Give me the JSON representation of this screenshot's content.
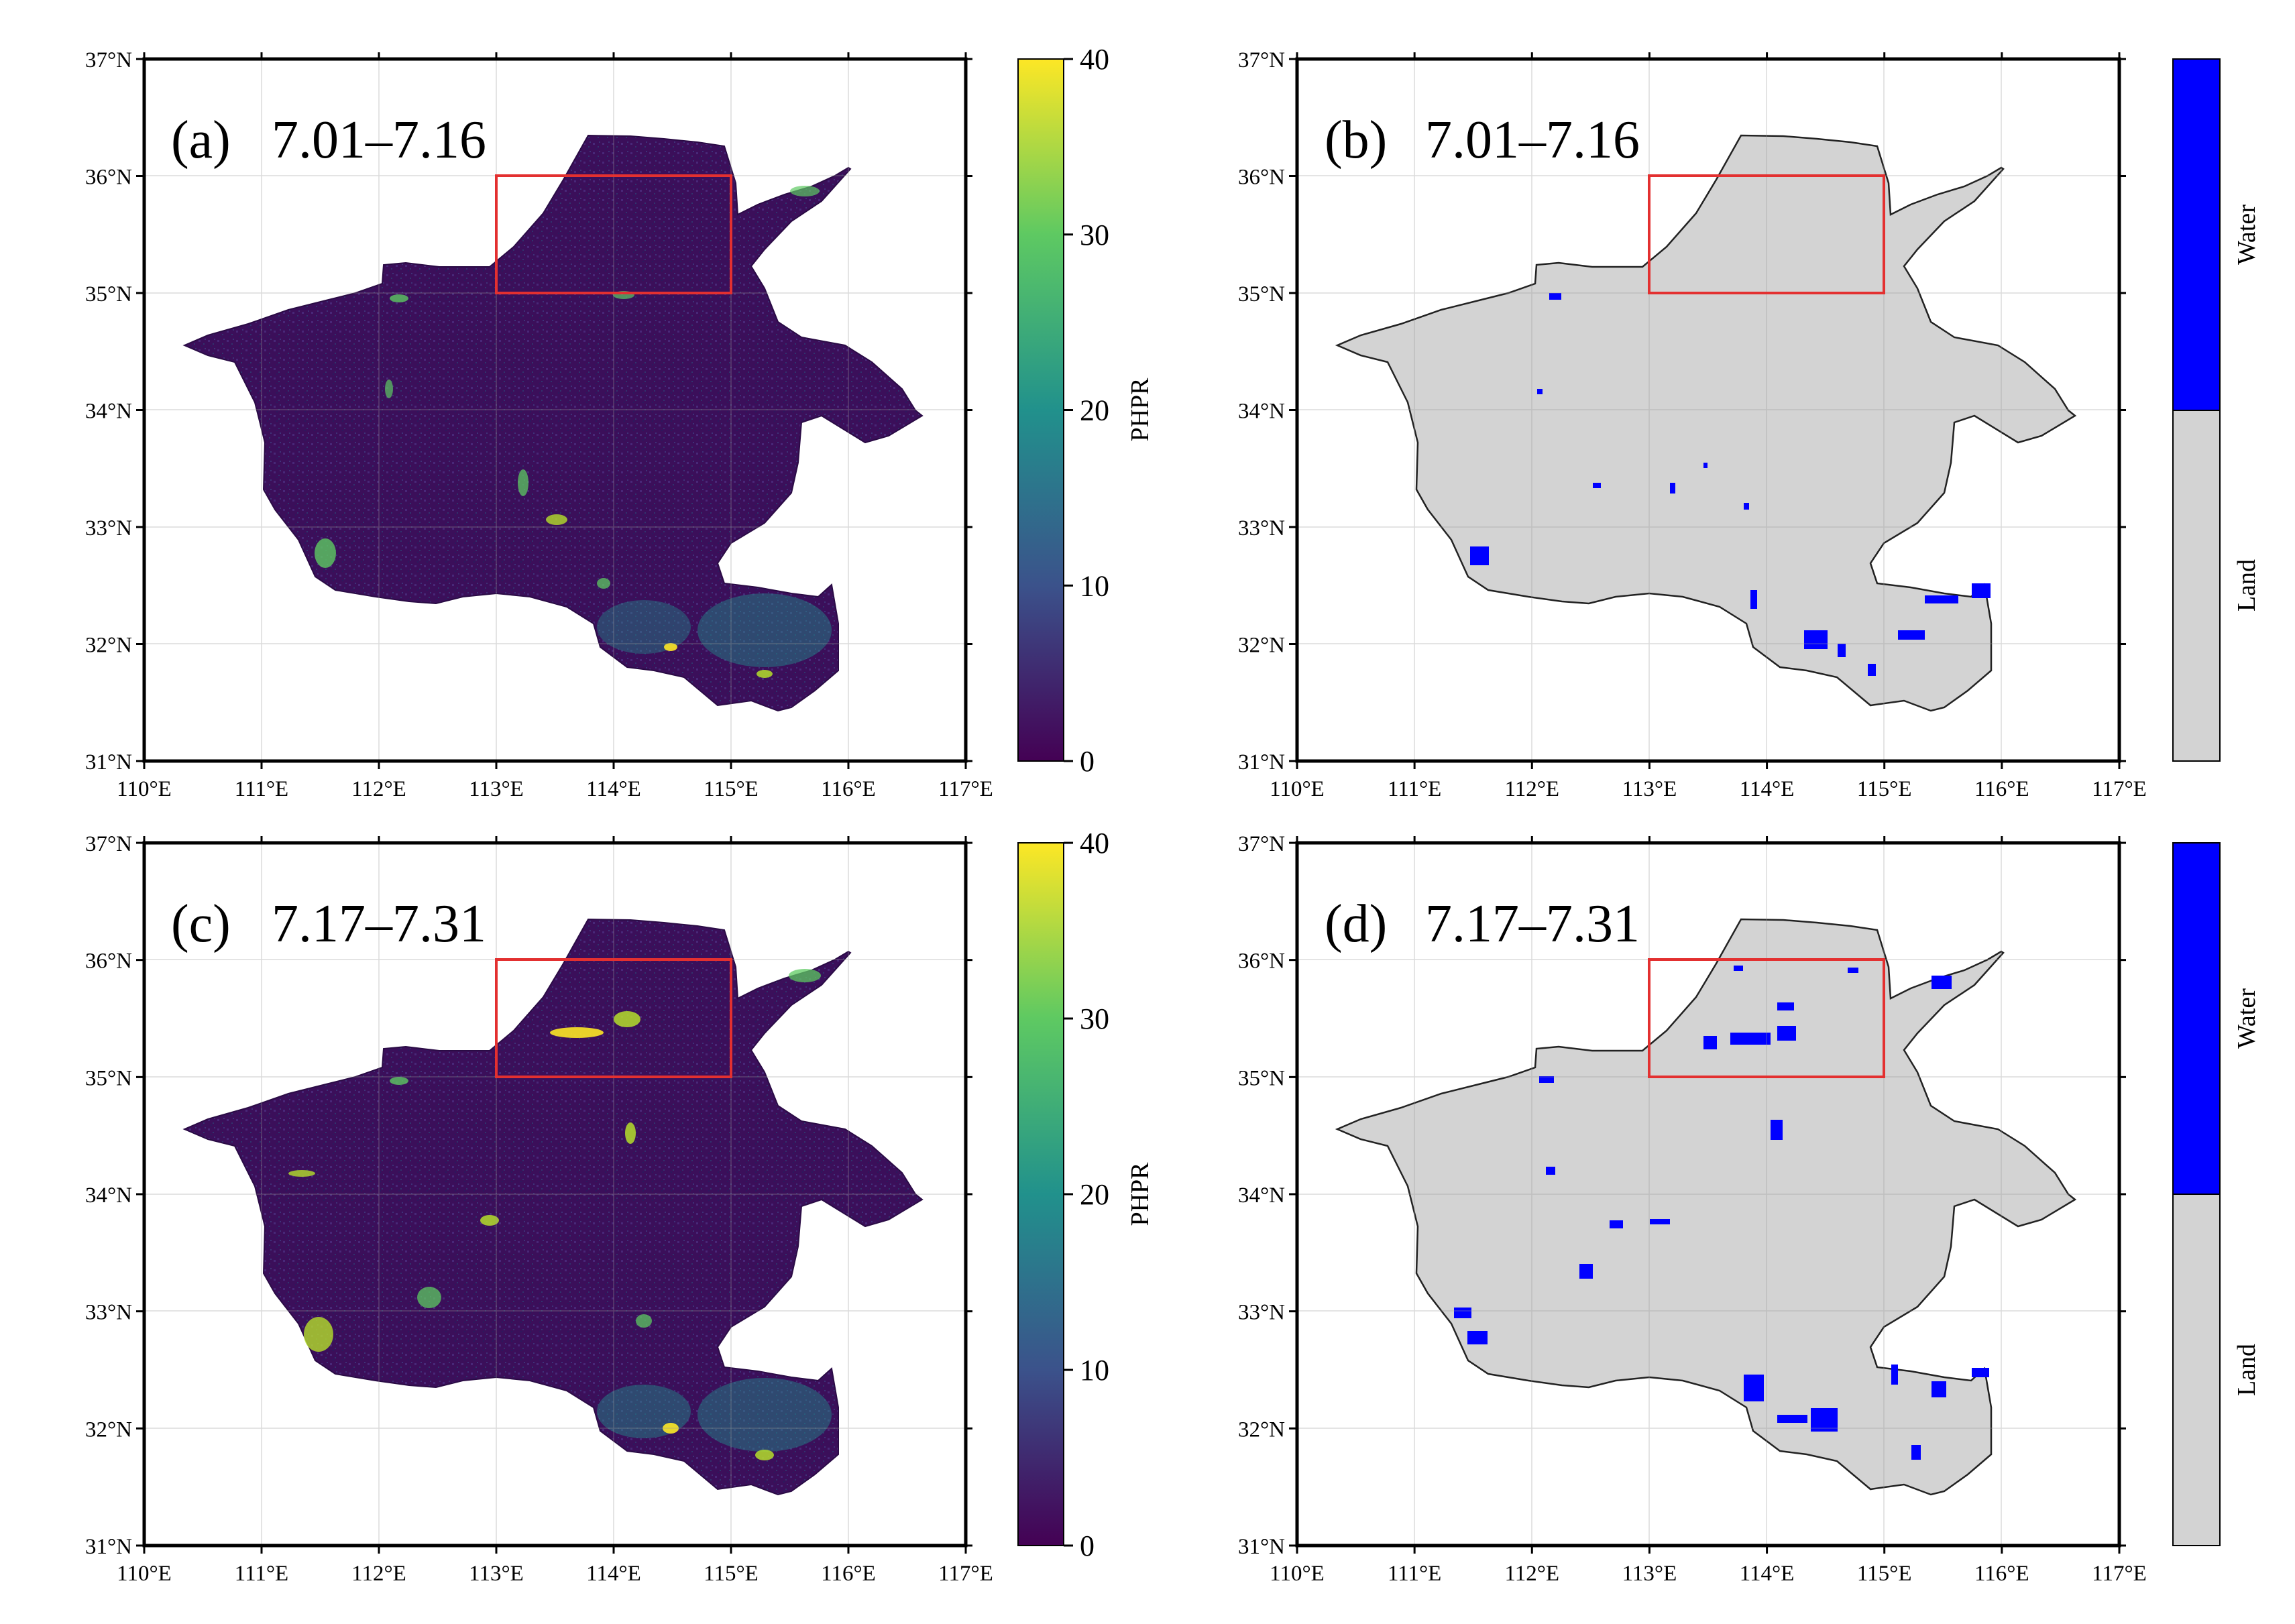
{
  "figure": {
    "colors": {
      "viridis_low": "#440154",
      "viridis_high": "#fde725",
      "water": "#0000ff",
      "land": "#d3d3d3",
      "study_box": "#e33030"
    }
  },
  "axes": {
    "lat_ticks": [
      "37°N",
      "36°N",
      "35°N",
      "34°N",
      "33°N",
      "32°N",
      "31°N"
    ],
    "lon_ticks": [
      "110°E",
      "111°E",
      "112°E",
      "113°E",
      "114°E",
      "115°E",
      "116°E",
      "117°E"
    ],
    "lat_range": [
      31,
      37
    ],
    "lon_range": [
      110,
      117
    ],
    "study_box": {
      "lon": [
        113,
        115
      ],
      "lat": [
        35,
        36
      ]
    }
  },
  "panels": {
    "a": {
      "label": "(a)",
      "period": "7.01–7.16",
      "kind": "PHPR"
    },
    "b": {
      "label": "(b)",
      "period": "7.01–7.16",
      "kind": "water-land"
    },
    "c": {
      "label": "(c)",
      "period": "7.17–7.31",
      "kind": "PHPR"
    },
    "d": {
      "label": "(d)",
      "period": "7.17–7.31",
      "kind": "water-land"
    }
  },
  "colorbars": {
    "phpr": {
      "title": "PHPR",
      "ticks": [
        "40",
        "30",
        "20",
        "10",
        "0"
      ],
      "range": [
        0,
        40
      ]
    },
    "class": {
      "water_label": "Water",
      "land_label": "Land"
    }
  }
}
